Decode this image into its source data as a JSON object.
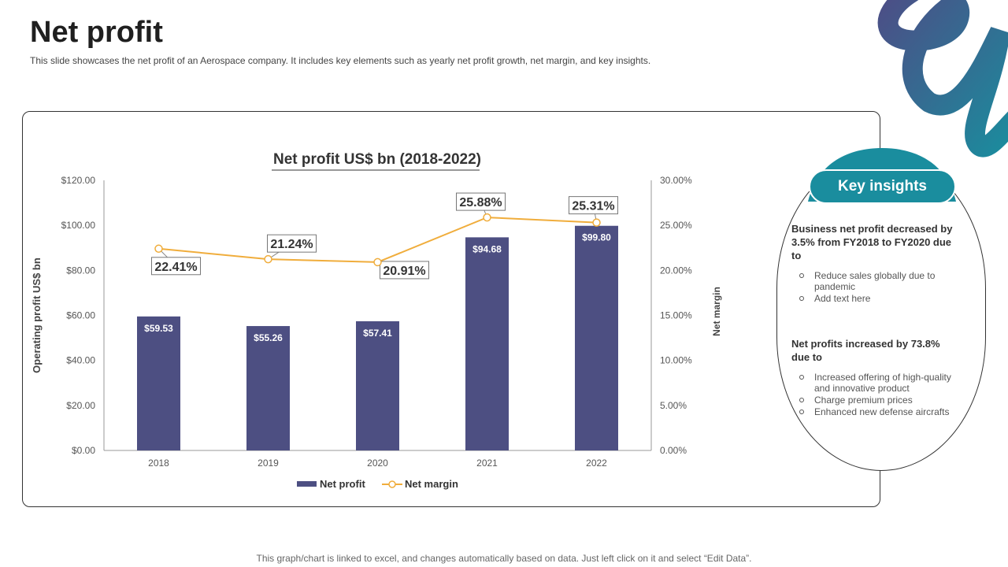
{
  "page": {
    "title": "Net profit",
    "subtitle": "This slide showcases the net profit of an Aerospace company. It includes key elements such as yearly net profit growth, net margin, and key insights.",
    "footer": "This graph/chart is linked to excel, and changes automatically based on data. Just left click on it and select “Edit Data”."
  },
  "colors": {
    "bar": "#4d4f82",
    "line": "#f0ad3c",
    "accent_teal": "#1a8d9e",
    "accent_indigo": "#4c4e86"
  },
  "chart_data": {
    "type": "bar",
    "title": "Net profit US$ bn (2018-2022)",
    "categories": [
      "2018",
      "2019",
      "2020",
      "2021",
      "2022"
    ],
    "series": [
      {
        "name": "Net profit",
        "type": "bar",
        "axis": "left",
        "values": [
          59.53,
          55.26,
          57.41,
          94.68,
          99.8
        ],
        "labels": [
          "$59.53",
          "$55.26",
          "$57.41",
          "$94.68",
          "$99.80"
        ]
      },
      {
        "name": "Net margin",
        "type": "line",
        "axis": "right",
        "values": [
          22.41,
          21.24,
          20.91,
          25.88,
          25.31
        ],
        "labels": [
          "22.41%",
          "21.24%",
          "20.91%",
          "25.88%",
          "25.31%"
        ]
      }
    ],
    "ylabel": "Operating profit US$ bn",
    "y2label": "Net margin",
    "ylim": [
      0,
      120
    ],
    "y2lim": [
      0,
      30
    ],
    "yticks": [
      "$0.00",
      "$20.00",
      "$40.00",
      "$60.00",
      "$80.00",
      "$100.00",
      "$120.00"
    ],
    "y2ticks": [
      "0.00%",
      "5.00%",
      "10.00%",
      "15.00%",
      "20.00%",
      "25.00%",
      "30.00%"
    ],
    "grid": false,
    "legend": "bottom"
  },
  "insights": {
    "title": "Key insights",
    "block1": {
      "heading": "Business net profit decreased by 3.5% from FY2018 to FY2020 due to",
      "items": [
        "Reduce sales globally due to pandemic",
        "Add text here"
      ]
    },
    "block2": {
      "heading": "Net profits increased by 73.8% due to",
      "items": [
        "Increased offering of high-quality and innovative product",
        "Charge premium prices",
        "Enhanced new defense aircrafts"
      ]
    }
  }
}
